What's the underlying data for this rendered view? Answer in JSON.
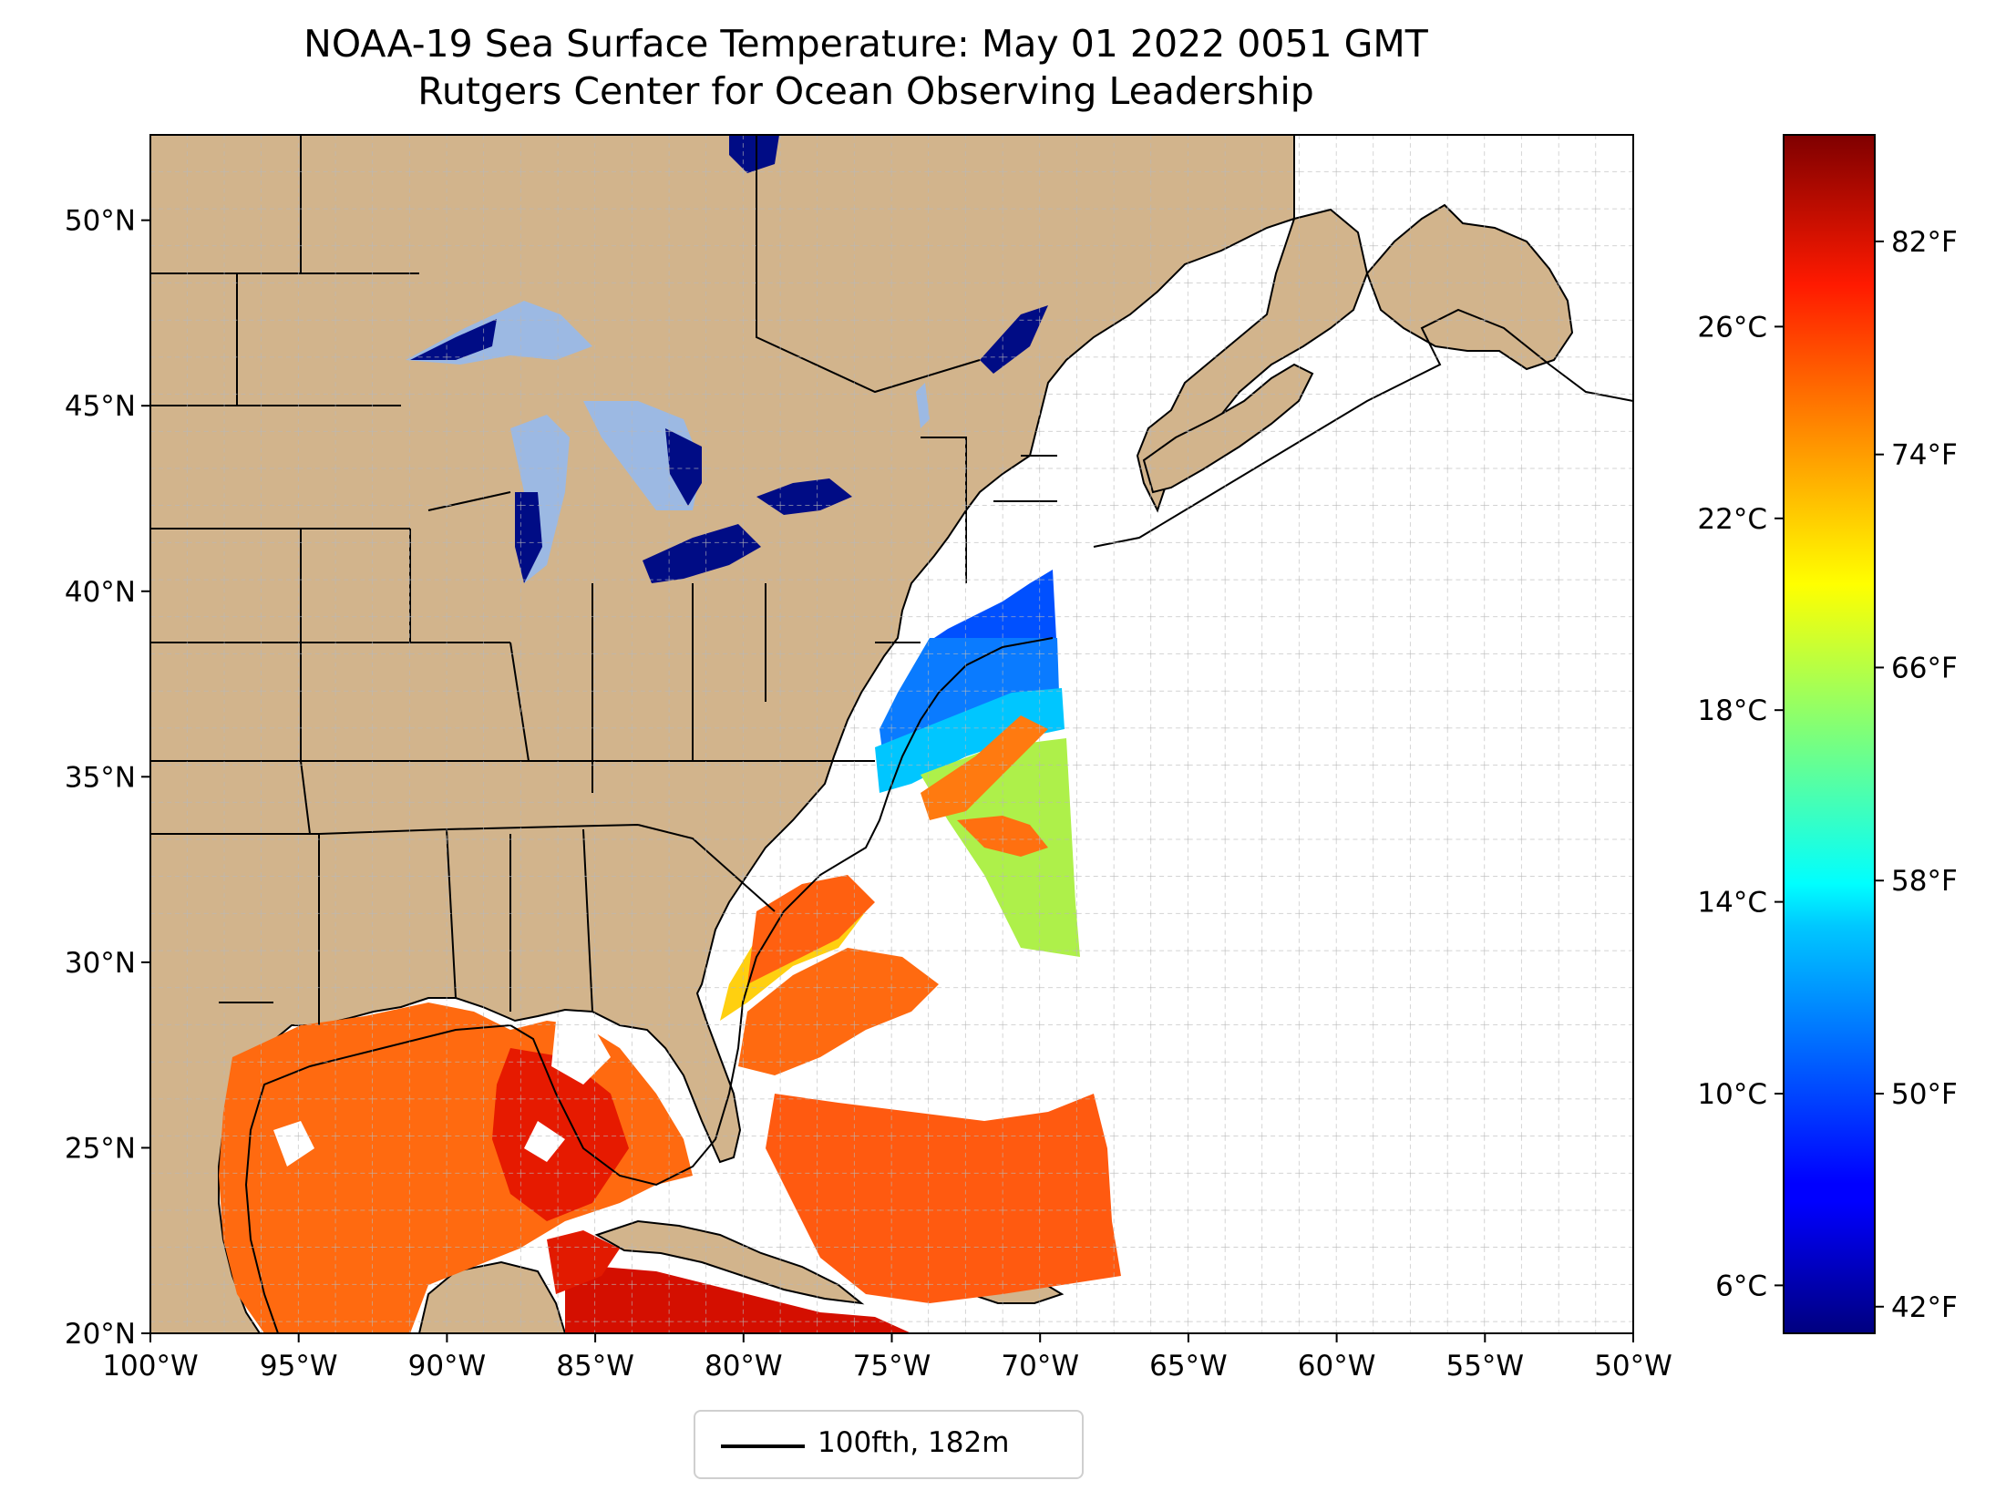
{
  "title": "NOAA-19 Sea Surface Temperature: May 01 2022 0051 GMT",
  "subtitle": "Rutgers Center for Ocean Observing Leadership",
  "map": {
    "lon_range": [
      -100,
      -50
    ],
    "lat_range": [
      20,
      52.3
    ],
    "gridlines": true,
    "x_tick_labels": [
      "100°W",
      "95°W",
      "90°W",
      "85°W",
      "80°W",
      "75°W",
      "70°W",
      "65°W",
      "60°W",
      "55°W",
      "50°W"
    ],
    "y_tick_labels": [
      "20°N",
      "25°N",
      "30°N",
      "35°N",
      "40°N",
      "45°N",
      "50°N"
    ],
    "land_color": "#d2b48c",
    "lake_color": "#9cb9e3",
    "ocean_color": "#ffffff",
    "isobath": "100fth, 182m"
  },
  "legend": {
    "label": "100fth, 182m",
    "placement": "bottom-center"
  },
  "colorbar": {
    "colormap": "jet",
    "range_c": [
      5,
      30
    ],
    "celsius_labels": [
      "6°C",
      "10°C",
      "14°C",
      "18°C",
      "22°C",
      "26°C"
    ],
    "fahrenheit_labels": [
      "42°F",
      "50°F",
      "58°F",
      "66°F",
      "74°F",
      "82°F"
    ]
  }
}
